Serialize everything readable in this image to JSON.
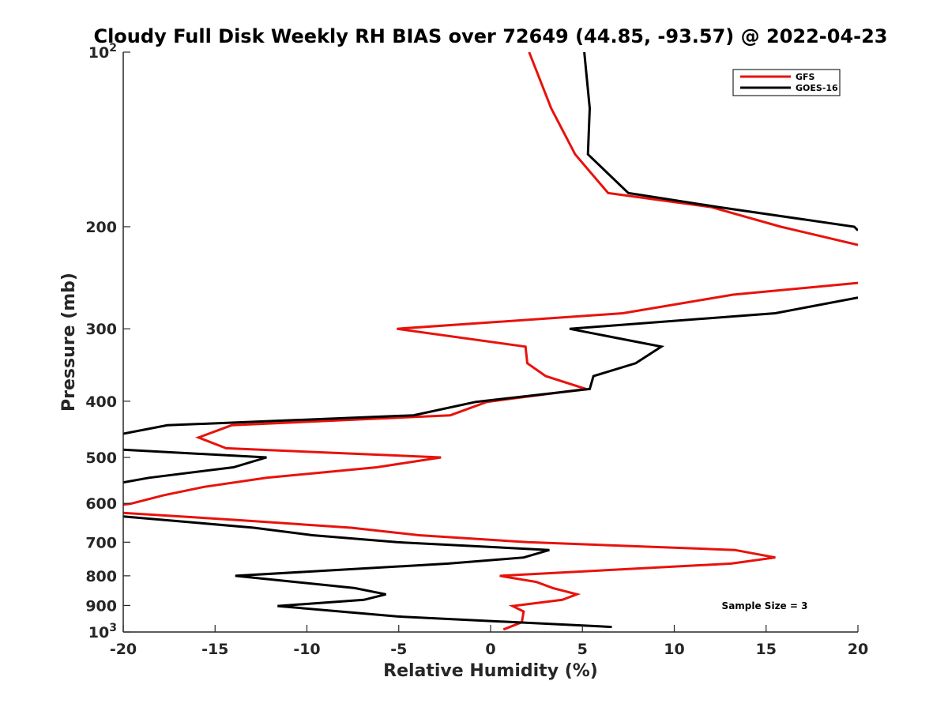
{
  "chart_data": {
    "type": "line",
    "title": "Cloudy Full Disk Weekly RH BIAS over 72649 (44.85, -93.57) @ 2022-04-23",
    "xlabel": "Relative Humidity (%)",
    "ylabel": "Pressure (mb)",
    "xlim": [
      -20,
      20
    ],
    "ylim": [
      100,
      1000
    ],
    "yscale": "log",
    "y_reversed": true,
    "xticks": [
      -20,
      -15,
      -10,
      -5,
      0,
      5,
      10,
      15,
      20
    ],
    "yticks": [
      100,
      200,
      300,
      400,
      500,
      600,
      700,
      800,
      900,
      1000
    ],
    "ytick_labels": [
      {
        "base": "10",
        "exp": "2"
      },
      {
        "base": "200",
        "exp": ""
      },
      {
        "base": "300",
        "exp": ""
      },
      {
        "base": "400",
        "exp": ""
      },
      {
        "base": "500",
        "exp": ""
      },
      {
        "base": "600",
        "exp": ""
      },
      {
        "base": "700",
        "exp": ""
      },
      {
        "base": "800",
        "exp": ""
      },
      {
        "base": "900",
        "exp": ""
      },
      {
        "base": "10",
        "exp": "3"
      }
    ],
    "grid": false,
    "legend_position": "top-right",
    "annotation": "Sample Size = 3",
    "series": [
      {
        "name": "GFS",
        "color": "#e8120c",
        "points": [
          [
            2.1,
            100
          ],
          [
            3.3,
            125
          ],
          [
            4.6,
            150
          ],
          [
            6.4,
            175
          ],
          [
            12.0,
            185
          ],
          [
            15.8,
            200
          ],
          [
            20.0,
            215
          ],
          [
            null,
            232
          ],
          [
            20.0,
            250
          ],
          [
            13.2,
            262
          ],
          [
            7.2,
            282
          ],
          [
            -5.1,
            300
          ],
          [
            1.9,
            322
          ],
          [
            2.0,
            344
          ],
          [
            3.0,
            362
          ],
          [
            5.2,
            381
          ],
          [
            -0.2,
            401
          ],
          [
            -2.2,
            423
          ],
          [
            -14.1,
            440
          ],
          [
            -15.9,
            462
          ],
          [
            -14.4,
            482
          ],
          [
            -2.7,
            500
          ],
          [
            -6.2,
            520
          ],
          [
            -12.2,
            542
          ],
          [
            -15.6,
            562
          ],
          [
            -17.8,
            581
          ],
          [
            -19.6,
            601
          ],
          [
            -20.0,
            603
          ],
          [
            null,
            613
          ],
          [
            -20.0,
            623
          ],
          [
            -13.8,
            641
          ],
          [
            -7.6,
            661
          ],
          [
            -3.9,
            681
          ],
          [
            2.0,
            700
          ],
          [
            13.3,
            722
          ],
          [
            15.5,
            744
          ],
          [
            13.1,
            762
          ],
          [
            0.5,
            800
          ],
          [
            2.5,
            820
          ],
          [
            3.4,
            840
          ],
          [
            4.7,
            861
          ],
          [
            3.9,
            880
          ],
          [
            1.2,
            902
          ],
          [
            1.8,
            922
          ],
          [
            1.7,
            962
          ],
          [
            0.7,
            990
          ]
        ]
      },
      {
        "name": "GOES-16",
        "color": "#000000",
        "points": [
          [
            5.1,
            100
          ],
          [
            5.4,
            125
          ],
          [
            5.3,
            150
          ],
          [
            7.5,
            175
          ],
          [
            12.4,
            185
          ],
          [
            19.8,
            200
          ],
          [
            20.0,
            203
          ],
          [
            null,
            232
          ],
          [
            20.0,
            265
          ],
          [
            15.5,
            282
          ],
          [
            4.3,
            300
          ],
          [
            9.3,
            322
          ],
          [
            7.9,
            344
          ],
          [
            5.6,
            362
          ],
          [
            5.4,
            381
          ],
          [
            -0.8,
            401
          ],
          [
            -4.2,
            423
          ],
          [
            -17.6,
            440
          ],
          [
            -20.0,
            455
          ],
          [
            null,
            472
          ],
          [
            -20.0,
            485
          ],
          [
            -12.2,
            500
          ],
          [
            -14.0,
            520
          ],
          [
            -18.6,
            542
          ],
          [
            -20.0,
            552
          ],
          [
            null,
            600
          ],
          [
            -20.0,
            632
          ],
          [
            -12.9,
            661
          ],
          [
            -9.7,
            681
          ],
          [
            -5.1,
            700
          ],
          [
            3.2,
            722
          ],
          [
            1.8,
            744
          ],
          [
            -2.3,
            762
          ],
          [
            -13.9,
            800
          ],
          [
            -10.6,
            820
          ],
          [
            -7.4,
            840
          ],
          [
            -5.7,
            861
          ],
          [
            -6.9,
            880
          ],
          [
            -11.6,
            902
          ],
          [
            -5.1,
            940
          ],
          [
            6.6,
            980
          ]
        ]
      }
    ]
  }
}
